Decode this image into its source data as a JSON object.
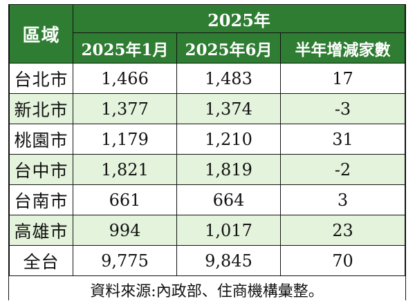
{
  "header": {
    "region_label": "區域",
    "year_label": "2025年",
    "col_jan": "2025年1月",
    "col_jun": "2025年6月",
    "col_diff": "半年增減家數"
  },
  "rows": [
    {
      "region": "台北市",
      "jan": "1,466",
      "jun": "1,483",
      "diff": "17"
    },
    {
      "region": "新北市",
      "jan": "1,377",
      "jun": "1,374",
      "diff": "-3"
    },
    {
      "region": "桃園市",
      "jan": "1,179",
      "jun": "1,210",
      "diff": "31"
    },
    {
      "region": "台中市",
      "jan": "1,821",
      "jun": "1,819",
      "diff": "-2"
    },
    {
      "region": "台南市",
      "jan": "661",
      "jun": "664",
      "diff": "3"
    },
    {
      "region": "高雄市",
      "jan": "994",
      "jun": "1,017",
      "diff": "23"
    },
    {
      "region": "全台",
      "jan": "9,775",
      "jun": "9,845",
      "diff": "70"
    }
  ],
  "footer": {
    "source": "資料來源:內政部、住商機構彙整。"
  },
  "colors": {
    "header_bg": "#2e7d32",
    "header_text": "#ffffff",
    "alt_row_bg": "#e4f3dc",
    "border": "#111111"
  }
}
